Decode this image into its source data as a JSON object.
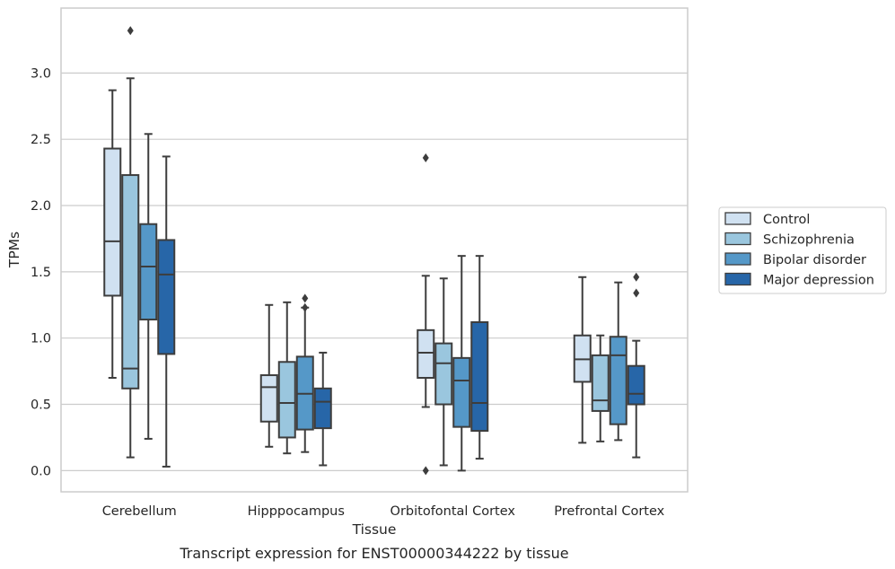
{
  "chart_data": {
    "type": "boxplot",
    "title": "",
    "caption": "Transcript expression for ENST00000344222 by tissue",
    "xlabel": "Tissue",
    "ylabel": "TPMs",
    "ylim": [
      -0.16,
      3.49
    ],
    "yticks": [
      "0.0",
      "0.5",
      "1.0",
      "1.5",
      "2.0",
      "2.5",
      "3.0"
    ],
    "grid": "horizontal",
    "legend_position": "right",
    "categories": [
      "Cerebellum",
      "Hipppocampus",
      "Orbitofontal Cortex",
      "Prefrontal Cortex"
    ],
    "series": [
      {
        "name": "Control",
        "color": "#d0e1f1",
        "boxes": [
          {
            "whisker_low": 0.7,
            "q1": 1.32,
            "median": 1.73,
            "q3": 2.43,
            "whisker_high": 2.87,
            "outliers": []
          },
          {
            "whisker_low": 0.18,
            "q1": 0.37,
            "median": 0.63,
            "q3": 0.72,
            "whisker_high": 1.25,
            "outliers": []
          },
          {
            "whisker_low": 0.48,
            "q1": 0.7,
            "median": 0.89,
            "q3": 1.06,
            "whisker_high": 1.47,
            "outliers": [
              2.36,
              0.0
            ]
          },
          {
            "whisker_low": 0.21,
            "q1": 0.67,
            "median": 0.84,
            "q3": 1.02,
            "whisker_high": 1.46,
            "outliers": []
          }
        ]
      },
      {
        "name": "Schizophrenia",
        "color": "#9ac6de",
        "boxes": [
          {
            "whisker_low": 0.1,
            "q1": 0.62,
            "median": 0.77,
            "q3": 2.23,
            "whisker_high": 2.96,
            "outliers": [
              3.32
            ]
          },
          {
            "whisker_low": 0.13,
            "q1": 0.25,
            "median": 0.51,
            "q3": 0.82,
            "whisker_high": 1.27,
            "outliers": []
          },
          {
            "whisker_low": 0.04,
            "q1": 0.5,
            "median": 0.81,
            "q3": 0.96,
            "whisker_high": 1.45,
            "outliers": []
          },
          {
            "whisker_low": 0.22,
            "q1": 0.45,
            "median": 0.53,
            "q3": 0.87,
            "whisker_high": 1.02,
            "outliers": []
          }
        ]
      },
      {
        "name": "Bipolar disorder",
        "color": "#5598c8",
        "boxes": [
          {
            "whisker_low": 0.24,
            "q1": 1.14,
            "median": 1.54,
            "q3": 1.86,
            "whisker_high": 2.54,
            "outliers": []
          },
          {
            "whisker_low": 0.14,
            "q1": 0.31,
            "median": 0.58,
            "q3": 0.86,
            "whisker_high": 1.23,
            "outliers": [
              1.3,
              1.23
            ]
          },
          {
            "whisker_low": 0.0,
            "q1": 0.33,
            "median": 0.68,
            "q3": 0.85,
            "whisker_high": 1.62,
            "outliers": []
          },
          {
            "whisker_low": 0.23,
            "q1": 0.35,
            "median": 0.87,
            "q3": 1.01,
            "whisker_high": 1.42,
            "outliers": []
          }
        ]
      },
      {
        "name": "Major depression",
        "color": "#2766a8",
        "boxes": [
          {
            "whisker_low": 0.03,
            "q1": 0.88,
            "median": 1.48,
            "q3": 1.74,
            "whisker_high": 2.37,
            "outliers": []
          },
          {
            "whisker_low": 0.04,
            "q1": 0.32,
            "median": 0.52,
            "q3": 0.62,
            "whisker_high": 0.89,
            "outliers": []
          },
          {
            "whisker_low": 0.09,
            "q1": 0.3,
            "median": 0.51,
            "q3": 1.12,
            "whisker_high": 1.62,
            "outliers": []
          },
          {
            "whisker_low": 0.1,
            "q1": 0.5,
            "median": 0.58,
            "q3": 0.79,
            "whisker_high": 0.98,
            "outliers": [
              1.46,
              1.34
            ]
          }
        ]
      }
    ]
  }
}
